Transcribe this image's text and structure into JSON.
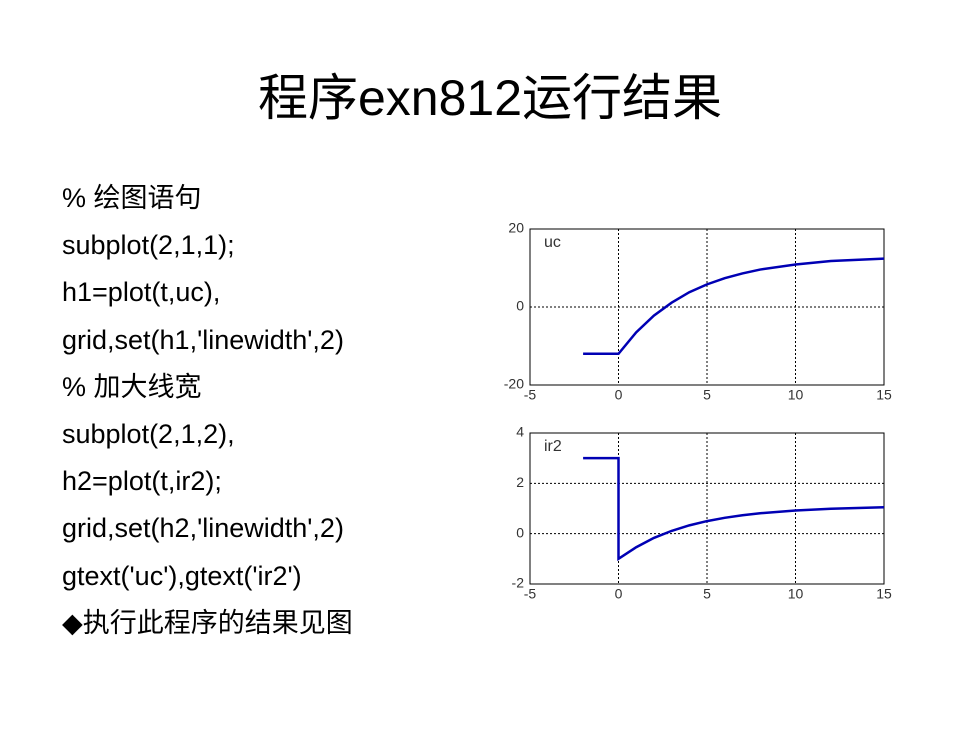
{
  "title": "程序exn812运行结果",
  "code_lines": [
    "% 绘图语句",
    "subplot(2,1,1);",
    "h1=plot(t,uc),",
    "grid,set(h1,'linewidth',2)",
    "% 加大线宽",
    "subplot(2,1,2),",
    "h2=plot(t,ir2);",
    "grid,set(h2,'linewidth',2)",
    "gtext('uc'),gtext('ir2')",
    "◆执行此程序的结果见图"
  ],
  "chart_data": [
    {
      "type": "line",
      "annotation": "uc",
      "color": "#0000b4",
      "grid": true,
      "x": [
        -2,
        0,
        1,
        2,
        3,
        4,
        5,
        6,
        7,
        8,
        10,
        12,
        15
      ],
      "values": [
        -12,
        -12,
        -6.5,
        -2.2,
        1.1,
        3.8,
        5.8,
        7.4,
        8.6,
        9.6,
        10.9,
        11.8,
        12.4
      ],
      "xlim": [
        -5,
        15
      ],
      "xticks": [
        -5,
        0,
        5,
        10,
        15
      ],
      "ylim": [
        -20,
        20
      ],
      "yticks": [
        -20,
        0,
        20
      ]
    },
    {
      "type": "line",
      "annotation": "ir2",
      "color": "#0000b4",
      "grid": true,
      "x": [
        -2,
        0,
        0,
        1,
        2,
        3,
        4,
        5,
        6,
        7,
        8,
        10,
        12,
        15
      ],
      "values": [
        3,
        3,
        -1,
        -0.54,
        -0.17,
        0.11,
        0.33,
        0.5,
        0.63,
        0.73,
        0.81,
        0.92,
        0.99,
        1.05
      ],
      "xlim": [
        -5,
        15
      ],
      "xticks": [
        -5,
        0,
        5,
        10,
        15
      ],
      "ylim": [
        -2,
        4
      ],
      "yticks": [
        -2,
        0,
        2,
        4
      ]
    }
  ]
}
